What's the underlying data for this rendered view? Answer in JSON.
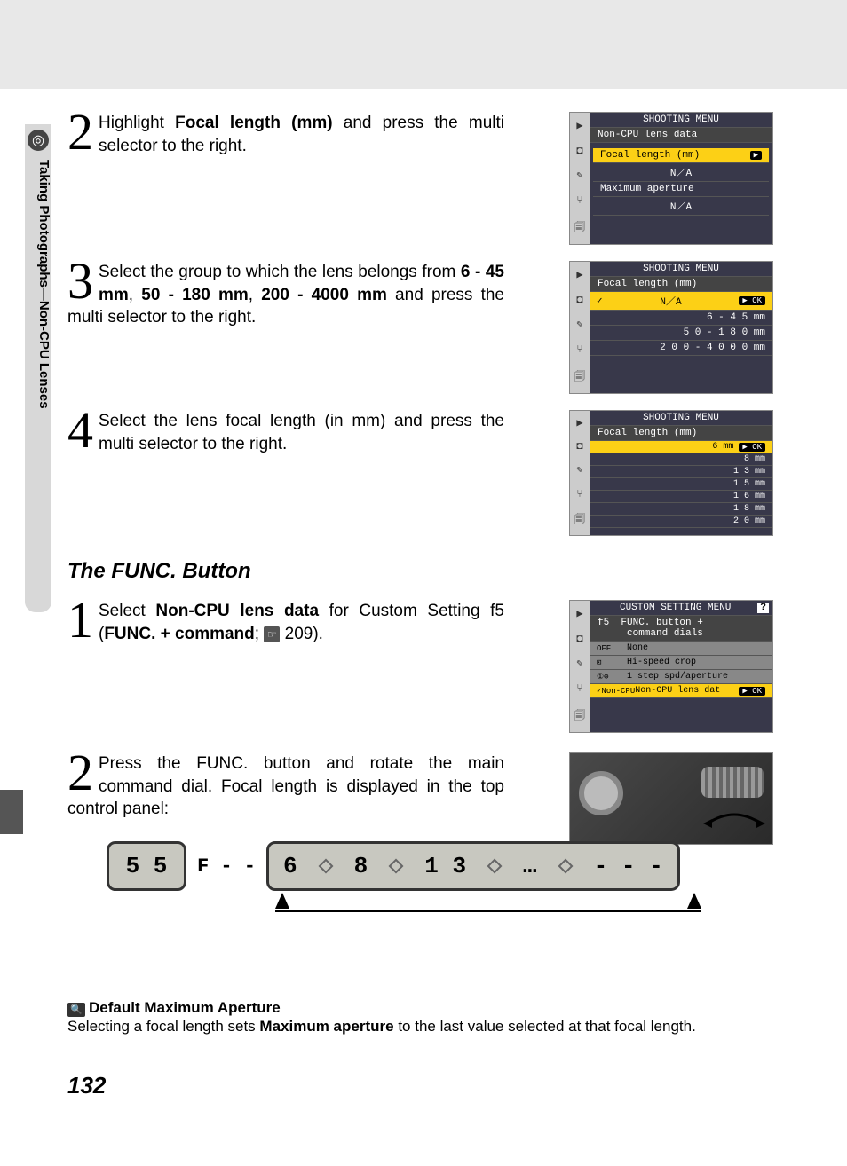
{
  "sidebar": {
    "icon_glyph": "◎",
    "text": "Taking Photographs—Non-CPU Lenses"
  },
  "steps_a": [
    {
      "num": "2",
      "html": "Highlight <b>Focal length (mm)</b> and press the multi selector to the right."
    },
    {
      "num": "3",
      "html": "Select the group to which the lens belongs from <b>6 - 45 mm</b>, <b>50 - 180 mm</b>, <b>200 - 4000 mm</b> and press the multi selector to the right."
    },
    {
      "num": "4",
      "html": "Select the lens focal length (in mm) and press the multi selector to the right."
    }
  ],
  "menu1": {
    "title": "SHOOTING MENU",
    "subtitle": "Non-CPU lens data",
    "rows": [
      "Focal length (mm)",
      "N／A",
      "Maximum aperture",
      "N／A"
    ],
    "highlight_idx": 0,
    "highlight_ok": "▶"
  },
  "menu2": {
    "title": "SHOOTING MENU",
    "subtitle": "Focal length (mm)",
    "rows": [
      "N／A",
      "6 -   4 5  mm",
      "5 0 -  1 8 0  mm",
      "2 0 0 - 4 0 0 0  mm"
    ],
    "highlight_idx": 0,
    "ok_text": "▶ OK"
  },
  "menu3": {
    "title": "SHOOTING MENU",
    "subtitle": "Focal length (mm)",
    "rows": [
      "6  mm",
      "8  mm",
      "1 3  mm",
      "1 5  mm",
      "1 6  mm",
      "1 8  mm",
      "2 0  mm"
    ],
    "highlight_idx": 0,
    "ok_text": "▶ OK"
  },
  "section_heading": "The FUNC. Button",
  "steps_b": [
    {
      "num": "1",
      "html": "Select <b>Non-CPU lens data</b> for Custom Setting f5 (<b>FUNC. + command</b>; <span class='page-ref-icon'>☞</span> 209)."
    },
    {
      "num": "2",
      "html": "Press the FUNC. button and rotate the main command dial.  Focal length is displayed in the top control panel:"
    }
  ],
  "menu4": {
    "title": "CUSTOM SETTING MENU",
    "subtitle": "f5  FUNC. button +\n     command dials",
    "rows": [
      {
        "prefix": "OFF",
        "text": "None"
      },
      {
        "prefix": "⊡",
        "text": "Hi-speed crop"
      },
      {
        "prefix": "①⊕",
        "text": "1 step spd/aperture"
      },
      {
        "prefix": "✓Non-CPU",
        "text": "Non-CPU lens dat",
        "highlight": true,
        "ok": "▶ OK"
      }
    ],
    "help_icon": "?"
  },
  "lcd": {
    "left_box": "5 5",
    "left_f": "F - -",
    "values": [
      "6",
      "8",
      "1 3",
      "…",
      "- - -"
    ]
  },
  "note": {
    "title": "Default Maximum Aperture",
    "body_html": "Selecting a focal length sets <b>Maximum aperture</b> to the last value selected at that focal length."
  },
  "page_number": "132",
  "colors": {
    "highlight": "#fcd016",
    "menu_bg": "#38384a"
  }
}
